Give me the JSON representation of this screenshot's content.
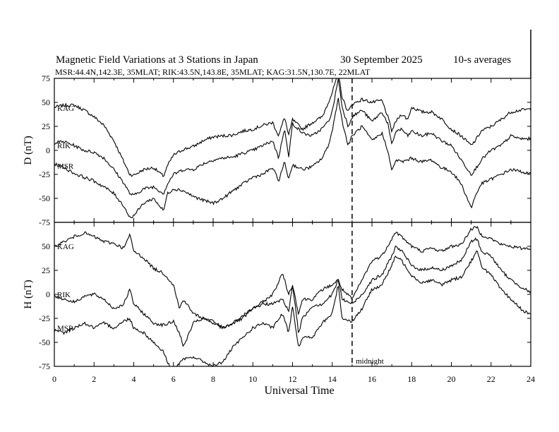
{
  "header": {
    "title": "Magnetic Field Variations at 3 Stations in Japan",
    "date": "30 September 2025",
    "averaging": "10-s averages",
    "stations_info": "MSR:44.4N,142.3E, 35MLAT;  RIK:43.5N,143.8E, 35MLAT;  KAG:31.5N,130.7E, 22MLAT"
  },
  "chart_data": [
    {
      "type": "line",
      "panel": "D",
      "ylabel": "D (nT)",
      "ylim": [
        -75,
        75
      ],
      "yticks": [
        75,
        50,
        25,
        0,
        -25,
        -50,
        -75
      ],
      "xlim": [
        0,
        24
      ],
      "x": [
        0,
        0.5,
        1,
        1.5,
        2,
        2.5,
        3,
        3.5,
        3.8,
        4,
        4.5,
        5,
        5.5,
        5.7,
        6,
        6.5,
        7,
        7.5,
        8,
        8.5,
        9,
        9.5,
        10,
        10.5,
        11,
        11.3,
        11.6,
        11.8,
        12,
        12.5,
        13,
        13.5,
        13.8,
        14,
        14.3,
        14.5,
        14.8,
        15,
        15.5,
        16,
        16.5,
        16.8,
        17,
        17.2,
        17.5,
        17.8,
        18,
        18.5,
        19,
        19.5,
        20,
        20.5,
        21,
        21.2,
        21.5,
        22,
        22.5,
        23,
        23.5,
        24
      ],
      "series": [
        {
          "name": "KAG",
          "label_value": 44,
          "values": [
            45,
            47,
            47,
            42,
            35,
            26,
            10,
            -12,
            -25,
            -26,
            -20,
            -18,
            -27,
            -16,
            -5,
            1,
            4,
            10,
            14,
            15,
            16,
            20,
            22,
            26,
            29,
            15,
            35,
            15,
            32,
            22,
            29,
            35,
            50,
            60,
            82,
            55,
            40,
            48,
            53,
            50,
            52,
            35,
            20,
            30,
            38,
            32,
            45,
            40,
            40,
            33,
            22,
            15,
            5,
            10,
            20,
            25,
            32,
            40,
            42,
            43
          ]
        },
        {
          "name": "RIK",
          "label_value": 5,
          "values": [
            8,
            9,
            5,
            0,
            -2,
            -8,
            -20,
            -34,
            -45,
            -47,
            -40,
            -38,
            -45,
            -35,
            -25,
            -20,
            -20,
            -14,
            -10,
            -8,
            -7,
            -3,
            0,
            5,
            10,
            -8,
            24,
            -8,
            28,
            18,
            15,
            23,
            30,
            40,
            75,
            45,
            25,
            35,
            42,
            30,
            40,
            28,
            5,
            20,
            22,
            15,
            20,
            15,
            18,
            10,
            5,
            -10,
            -25,
            -20,
            -10,
            0,
            5,
            15,
            12,
            12
          ]
        },
        {
          "name": "MSR",
          "label_value": -16,
          "values": [
            -14,
            -18,
            -24,
            -28,
            -32,
            -38,
            -45,
            -58,
            -70,
            -68,
            -55,
            -50,
            -63,
            -45,
            -40,
            -42,
            -48,
            -52,
            -55,
            -50,
            -42,
            -35,
            -28,
            -25,
            -18,
            -32,
            -12,
            -30,
            -15,
            -20,
            -17,
            -8,
            5,
            20,
            55,
            30,
            5,
            15,
            25,
            10,
            18,
            0,
            -22,
            -10,
            -12,
            -10,
            -8,
            -12,
            -10,
            -18,
            -22,
            -35,
            -60,
            -48,
            -35,
            -30,
            -25,
            -20,
            -22,
            -25
          ]
        }
      ]
    },
    {
      "type": "line",
      "panel": "H",
      "ylabel": "H (nT)",
      "ylim": [
        -75,
        75
      ],
      "yticks": [
        75,
        50,
        25,
        0,
        -25,
        -50,
        -75
      ],
      "xlim": [
        0,
        24
      ],
      "x": [
        0,
        0.5,
        1,
        1.5,
        2,
        2.5,
        3,
        3.5,
        3.8,
        4,
        4.5,
        5,
        5.5,
        5.8,
        6,
        6.3,
        6.5,
        7,
        7.5,
        8,
        8.5,
        9,
        9.5,
        10,
        10.5,
        11,
        11.5,
        11.8,
        12,
        12.3,
        12.5,
        13,
        13.5,
        14,
        14.3,
        14.5,
        15,
        15.5,
        16,
        16.5,
        17,
        17.2,
        17.5,
        18,
        18.5,
        19,
        19.5,
        20,
        20.5,
        21,
        21.3,
        21.5,
        22,
        22.5,
        23,
        23.5,
        24
      ],
      "series": [
        {
          "name": "KAG",
          "label_value": 50,
          "values": [
            50,
            55,
            60,
            64,
            60,
            55,
            53,
            48,
            62,
            45,
            38,
            27,
            22,
            15,
            10,
            -15,
            -5,
            -20,
            -25,
            -30,
            -35,
            -30,
            -22,
            -15,
            -8,
            0,
            22,
            0,
            10,
            -20,
            -5,
            -5,
            5,
            10,
            15,
            5,
            -5,
            15,
            35,
            40,
            58,
            65,
            60,
            50,
            45,
            48,
            45,
            50,
            52,
            68,
            70,
            62,
            58,
            52,
            50,
            48,
            48
          ]
        },
        {
          "name": "RIK",
          "label_value": 0,
          "values": [
            -2,
            -5,
            -8,
            -2,
            0,
            -5,
            -15,
            -10,
            5,
            -10,
            -20,
            -30,
            -32,
            -30,
            -28,
            -40,
            -55,
            -30,
            -25,
            -28,
            -35,
            -30,
            -25,
            -15,
            -10,
            -10,
            -5,
            -18,
            10,
            -40,
            -25,
            -12,
            -10,
            0,
            15,
            -5,
            -10,
            0,
            15,
            20,
            40,
            50,
            45,
            30,
            25,
            28,
            25,
            30,
            35,
            55,
            58,
            45,
            40,
            25,
            15,
            8,
            2
          ]
        },
        {
          "name": "MSR",
          "label_value": -35,
          "values": [
            -38,
            -40,
            -35,
            -30,
            -35,
            -30,
            -35,
            -28,
            -25,
            -35,
            -40,
            -50,
            -60,
            -75,
            -78,
            -72,
            -68,
            -65,
            -70,
            -75,
            -70,
            -55,
            -45,
            -35,
            -30,
            -35,
            -20,
            -40,
            -12,
            -55,
            -45,
            -45,
            -30,
            -20,
            10,
            -25,
            -28,
            -15,
            5,
            10,
            30,
            40,
            35,
            20,
            12,
            15,
            10,
            15,
            18,
            35,
            45,
            30,
            20,
            5,
            -5,
            -15,
            -22
          ]
        }
      ]
    }
  ],
  "x_axis": {
    "label": "Universal Time",
    "range": [
      0,
      24
    ],
    "ticks": [
      "0",
      "2",
      "4",
      "6",
      "8",
      "10",
      "12",
      "14",
      "16",
      "18",
      "20",
      "22",
      "24"
    ]
  },
  "marker": {
    "label": "midnight",
    "x": 15
  }
}
